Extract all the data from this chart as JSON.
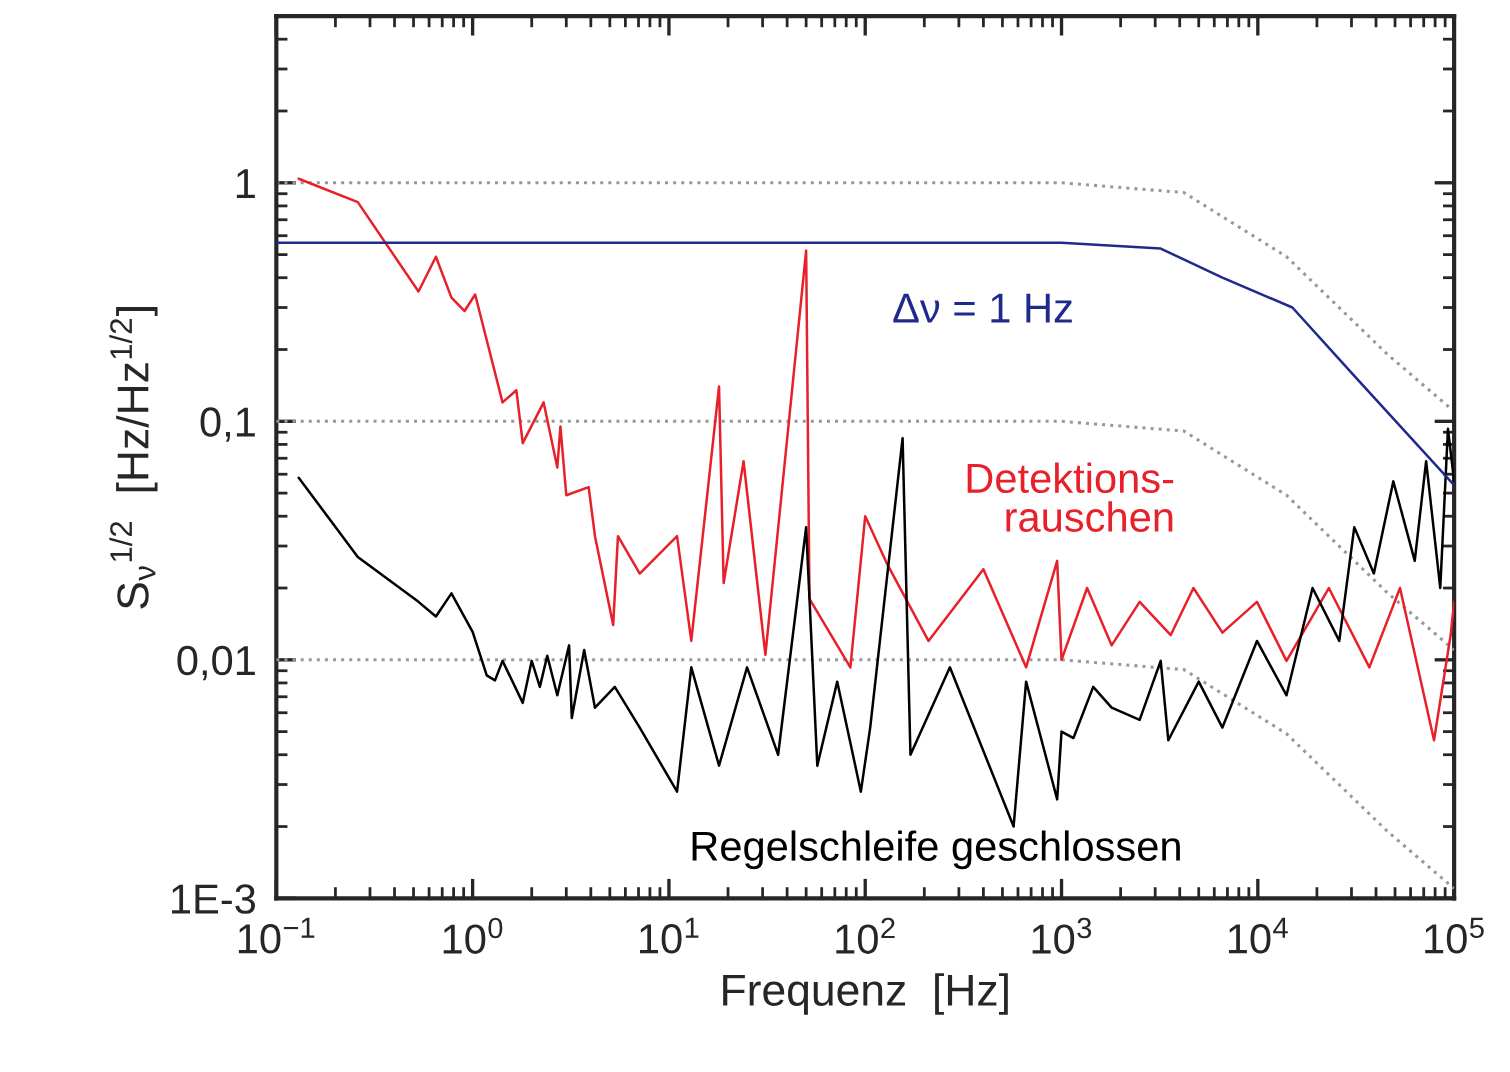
{
  "chart_data": {
    "type": "line",
    "xlabel": "Frequenz  [Hz]",
    "ylabel": "S$_{ν}$$^{1/2}$  [Hz/Hz$^{1/2}$]",
    "log": "xy",
    "grid": false,
    "xlim": [
      0.1,
      100000
    ],
    "ylim": [
      0.001,
      5
    ],
    "xticks": [
      {
        "value": 0.1,
        "label": "10$^{−1}$"
      },
      {
        "value": 1,
        "label": "10$^{0}$"
      },
      {
        "value": 10,
        "label": "10$^{1}$"
      },
      {
        "value": 100,
        "label": "10$^{2}$"
      },
      {
        "value": 1000,
        "label": "10$^{3}$"
      },
      {
        "value": 10000,
        "label": "10$^{4}$"
      },
      {
        "value": 100000,
        "label": "10$^{5}$"
      }
    ],
    "yticks": [
      {
        "value": 0.001,
        "label": "1E-3"
      },
      {
        "value": 0.01,
        "label": "0,01"
      },
      {
        "value": 0.1,
        "label": "0,1"
      },
      {
        "value": 1,
        "label": "1"
      }
    ],
    "series": [
      {
        "color": "#999999",
        "line_style": "dotted",
        "x": [
          0.1,
          1000,
          4200,
          14000,
          46000,
          100000
        ],
        "values": [
          1,
          1,
          0.91,
          0.49,
          0.19,
          0.11
        ]
      },
      {
        "color": "#999999",
        "line_style": "dotted",
        "x": [
          0.1,
          1000,
          4200,
          14000,
          46000,
          100000
        ],
        "values": [
          0.1,
          0.1,
          0.091,
          0.049,
          0.019,
          0.011
        ]
      },
      {
        "color": "#999999",
        "line_style": "dotted",
        "x": [
          0.1,
          1000,
          4200,
          14000,
          46000,
          100000
        ],
        "values": [
          0.01,
          0.01,
          0.0091,
          0.0049,
          0.0019,
          0.0011
        ]
      },
      {
        "name": "Detektions-\nrauschen",
        "color": "#e8202a",
        "x": [
          0.13,
          0.26,
          0.53,
          0.65,
          0.78,
          0.91,
          1.03,
          1.42,
          1.67,
          1.8,
          2.3,
          2.7,
          2.8,
          3.0,
          3.9,
          4.2,
          5.2,
          5.5,
          7.1,
          11,
          13,
          18,
          19,
          24,
          31,
          50,
          52,
          84,
          100,
          130,
          210,
          400,
          660,
          950,
          1000,
          1350,
          1800,
          2500,
          3600,
          4700,
          6600,
          9900,
          14000,
          23000,
          37000,
          53000,
          79000,
          96000,
          100000
        ],
        "values": [
          1.04,
          0.83,
          0.35,
          0.49,
          0.33,
          0.29,
          0.34,
          0.12,
          0.135,
          0.081,
          0.12,
          0.064,
          0.095,
          0.049,
          0.053,
          0.033,
          0.014,
          0.033,
          0.023,
          0.033,
          0.012,
          0.14,
          0.021,
          0.068,
          0.0105,
          0.52,
          0.018,
          0.0093,
          0.04,
          0.025,
          0.012,
          0.024,
          0.0093,
          0.026,
          0.01,
          0.02,
          0.0115,
          0.0175,
          0.0127,
          0.02,
          0.013,
          0.0175,
          0.0099,
          0.02,
          0.0093,
          0.02,
          0.0046,
          0.0127,
          0.0175
        ]
      },
      {
        "name": "Regelschleife geschlossen",
        "color": "#000000",
        "x": [
          0.13,
          0.26,
          0.53,
          0.65,
          0.78,
          1.0,
          1.18,
          1.3,
          1.42,
          1.8,
          2.0,
          2.2,
          2.4,
          2.7,
          3.1,
          3.2,
          3.7,
          4.2,
          5.3,
          7.1,
          11,
          13,
          18,
          25,
          36,
          50,
          57,
          72,
          95,
          106,
          155,
          170,
          270,
          570,
          660,
          950,
          1000,
          1150,
          1450,
          1800,
          2500,
          3200,
          3500,
          5000,
          6600,
          9900,
          14000,
          19000,
          26000,
          31000,
          39000,
          49000,
          63000,
          72000,
          85000,
          93000,
          100000
        ],
        "values": [
          0.058,
          0.027,
          0.0175,
          0.0152,
          0.019,
          0.0131,
          0.0086,
          0.0082,
          0.0099,
          0.0066,
          0.0099,
          0.0077,
          0.0104,
          0.0071,
          0.0115,
          0.0057,
          0.011,
          0.0063,
          0.0077,
          0.0052,
          0.0028,
          0.0093,
          0.0036,
          0.0093,
          0.004,
          0.036,
          0.0036,
          0.0081,
          0.0028,
          0.0052,
          0.085,
          0.004,
          0.0093,
          0.002,
          0.0081,
          0.0026,
          0.005,
          0.0047,
          0.0077,
          0.0063,
          0.0056,
          0.0099,
          0.0046,
          0.0081,
          0.0052,
          0.012,
          0.0071,
          0.02,
          0.012,
          0.036,
          0.023,
          0.056,
          0.026,
          0.068,
          0.02,
          0.093,
          0.056
        ]
      },
      {
        "name": "Δν = 1 Hz",
        "color": "#1f2a8c",
        "x": [
          0.1,
          1000,
          3200,
          6600,
          15000,
          31000,
          100000
        ],
        "values": [
          0.56,
          0.56,
          0.53,
          0.4,
          0.3,
          0.155,
          0.054
        ]
      }
    ]
  }
}
